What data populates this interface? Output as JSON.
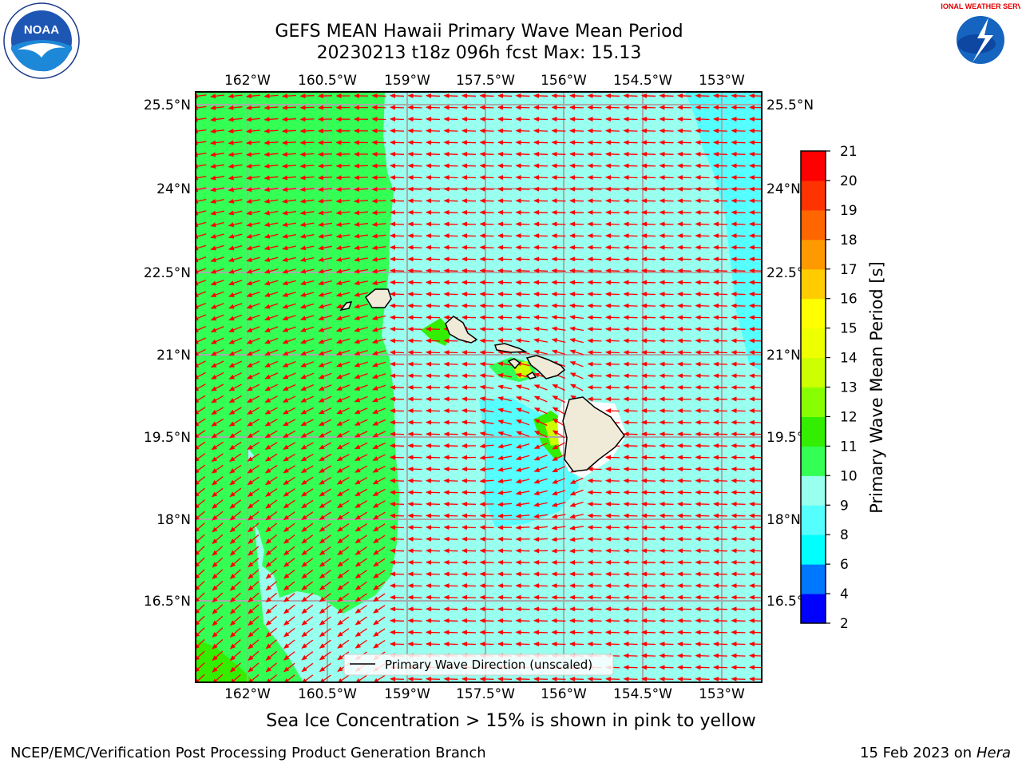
{
  "title_line1": "GEFS MEAN Hawaii Primary Wave Mean Period",
  "title_line2": "20230213 t18z 096h fcst   Max: 15.13",
  "lon_labels": [
    "162°W",
    "160.5°W",
    "159°W",
    "157.5°W",
    "156°W",
    "154.5°W",
    "153°W"
  ],
  "lat_labels": [
    "25.5°N",
    "24°N",
    "22.5°N",
    "21°N",
    "19.5°N",
    "18°N",
    "16.5°N"
  ],
  "colorbar": {
    "label": "Primary Wave Mean Period [s]",
    "ticks": [
      "2",
      "4",
      "6",
      "8",
      "9",
      "10",
      "11",
      "12",
      "13",
      "14",
      "15",
      "16",
      "17",
      "18",
      "19",
      "20",
      "21"
    ],
    "colors": [
      "#0000ff",
      "#0077ff",
      "#00ffff",
      "#55ffff",
      "#99ffee",
      "#33ff55",
      "#33ee00",
      "#88ff00",
      "#ccff00",
      "#eeff00",
      "#ffff00",
      "#ffcc00",
      "#ff9900",
      "#ff6600",
      "#ff3300",
      "#ff0000"
    ]
  },
  "legend_label": "Primary Wave Direction (unscaled)",
  "subtitle": "Sea Ice Concentration > 15% is shown in pink to yellow",
  "footer_left": "NCEP/EMC/Verification Post Processing Product Generation Branch",
  "footer_date": "15 Feb 2023 on",
  "footer_machine": "Hera",
  "noaa_logo_text": "NOAA",
  "nws_logo_text": "NATIONAL WEATHER SERVICE",
  "colors": {
    "green_fill": "#33ff55",
    "aqua_fill": "#99ffee",
    "cyan_fill": "#55ffff",
    "arrow": "#ff0000",
    "land": "#f0ead8"
  }
}
